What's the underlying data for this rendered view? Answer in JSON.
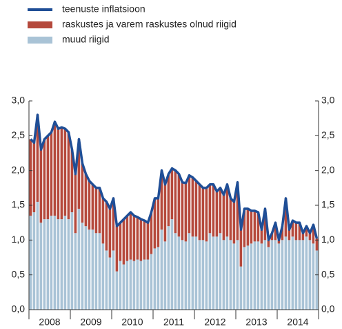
{
  "chart_data": {
    "type": "bar",
    "legend": "top-left",
    "categories": [
      null,
      null,
      null,
      null,
      null,
      null,
      "2008",
      null,
      null,
      null,
      null,
      null,
      null,
      null,
      null,
      null,
      null,
      null,
      "2009",
      null,
      null,
      null,
      null,
      null,
      null,
      null,
      null,
      null,
      null,
      null,
      "2010",
      null,
      null,
      null,
      null,
      null,
      null,
      null,
      null,
      null,
      null,
      null,
      "2011",
      null,
      null,
      null,
      null,
      null,
      null,
      null,
      null,
      null,
      null,
      null,
      "2012",
      null,
      null,
      null,
      null,
      null,
      null,
      null,
      null,
      null,
      null,
      null,
      "2013",
      null,
      null,
      null,
      null,
      null,
      null,
      null,
      null,
      null,
      null,
      null,
      "2014",
      null,
      null,
      null,
      null,
      null
    ],
    "series": [
      {
        "name": "teenuste inflatsioon",
        "type": "line",
        "color": "#1f4e96",
        "values": [
          2.45,
          2.4,
          2.8,
          2.3,
          2.45,
          2.5,
          2.55,
          2.7,
          2.6,
          2.62,
          2.6,
          2.55,
          2.3,
          1.95,
          2.45,
          2.1,
          1.95,
          1.85,
          1.8,
          1.75,
          1.75,
          1.6,
          1.55,
          1.45,
          1.6,
          1.2,
          1.25,
          1.3,
          1.35,
          1.4,
          1.35,
          1.33,
          1.3,
          1.28,
          1.25,
          1.4,
          1.6,
          1.6,
          2.0,
          1.8,
          1.95,
          2.03,
          2.0,
          1.95,
          1.83,
          1.82,
          1.93,
          1.9,
          1.85,
          1.8,
          1.75,
          1.75,
          1.8,
          1.8,
          1.7,
          1.75,
          1.65,
          1.8,
          1.6,
          1.55,
          1.83,
          1.15,
          1.45,
          1.45,
          1.42,
          1.42,
          1.4,
          1.15,
          1.45,
          1.0,
          1.1,
          1.25,
          1.0,
          1.2,
          1.6,
          1.15,
          1.28,
          1.25,
          1.25,
          1.1,
          1.2,
          1.1,
          1.22,
          1.02
        ]
      },
      {
        "name": "raskustes ja varem raskustes olnud riigid",
        "type": "bar",
        "color": "#b5493c",
        "values": [
          1.1,
          1.0,
          1.25,
          1.05,
          1.15,
          1.2,
          1.2,
          1.35,
          1.3,
          1.32,
          1.25,
          1.25,
          0.9,
          0.85,
          1.0,
          0.85,
          0.75,
          0.7,
          0.65,
          0.65,
          0.65,
          0.65,
          0.7,
          0.7,
          0.75,
          0.65,
          0.55,
          0.65,
          0.65,
          0.68,
          0.65,
          0.61,
          0.6,
          0.56,
          0.53,
          0.6,
          0.72,
          0.7,
          0.85,
          0.82,
          0.75,
          0.73,
          0.9,
          0.9,
          0.83,
          0.84,
          0.83,
          0.85,
          0.8,
          0.8,
          0.75,
          0.77,
          0.7,
          0.75,
          0.65,
          0.65,
          0.65,
          0.75,
          0.6,
          0.6,
          0.83,
          0.53,
          0.55,
          0.53,
          0.47,
          0.44,
          0.42,
          0.2,
          0.45,
          0.1,
          0.1,
          0.25,
          0.05,
          0.2,
          0.55,
          0.15,
          0.23,
          0.25,
          0.25,
          0.1,
          0.15,
          0.1,
          0.27,
          0.17
        ]
      },
      {
        "name": "muud riigid",
        "type": "bar",
        "color": "#a9c3d6",
        "values": [
          1.35,
          1.4,
          1.55,
          1.25,
          1.3,
          1.3,
          1.35,
          1.35,
          1.3,
          1.3,
          1.35,
          1.3,
          1.4,
          1.1,
          1.45,
          1.25,
          1.2,
          1.15,
          1.15,
          1.1,
          1.1,
          0.95,
          0.85,
          0.75,
          0.85,
          0.55,
          0.7,
          0.65,
          0.7,
          0.72,
          0.7,
          0.72,
          0.7,
          0.72,
          0.72,
          0.8,
          0.88,
          0.9,
          1.15,
          0.98,
          1.2,
          1.3,
          1.1,
          1.05,
          1.0,
          0.98,
          1.1,
          1.05,
          1.05,
          1.0,
          1.0,
          0.98,
          1.1,
          1.05,
          1.05,
          1.1,
          1.0,
          1.05,
          1.0,
          0.95,
          1.0,
          0.62,
          0.9,
          0.92,
          0.95,
          0.98,
          0.98,
          0.95,
          1.0,
          0.9,
          1.0,
          1.0,
          0.95,
          1.0,
          1.05,
          1.0,
          1.05,
          1.0,
          1.0,
          1.0,
          1.05,
          1.0,
          0.95,
          0.85
        ]
      }
    ],
    "ylim": [
      0,
      3
    ],
    "yticks": [
      {
        "value": 0,
        "label": "0,0"
      },
      {
        "value": 0.5,
        "label": "0,5"
      },
      {
        "value": 1,
        "label": "1,0"
      },
      {
        "value": 1.5,
        "label": "1,5"
      },
      {
        "value": 2,
        "label": "2,0"
      },
      {
        "value": 2.5,
        "label": "2,5"
      },
      {
        "value": 3,
        "label": "3,0"
      }
    ],
    "y2lim": [
      0,
      3
    ],
    "y2ticks": [
      {
        "value": 0,
        "label": "0,0"
      },
      {
        "value": 0.5,
        "label": "0,5"
      },
      {
        "value": 1,
        "label": "1,0"
      },
      {
        "value": 1.5,
        "label": "1,5"
      },
      {
        "value": 2,
        "label": "2,0"
      },
      {
        "value": 2.5,
        "label": "2,5"
      },
      {
        "value": 3,
        "label": "3,0"
      }
    ],
    "grid": false
  }
}
